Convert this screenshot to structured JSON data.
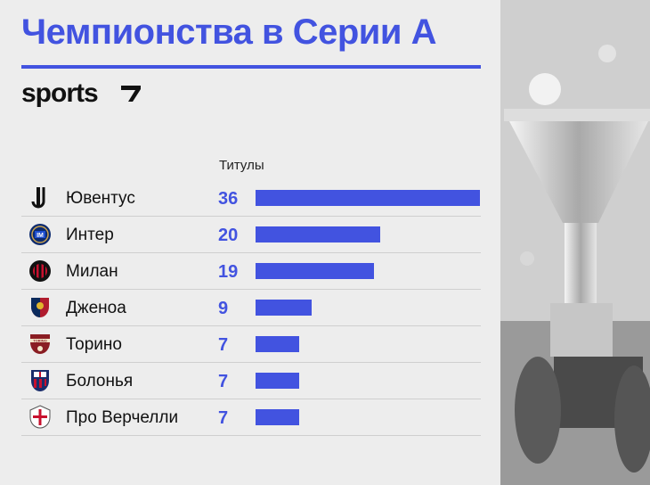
{
  "title": "Чемпионства в Серии А",
  "brand": "sports",
  "column_header": "Титулы",
  "colors": {
    "accent": "#4253e0",
    "text": "#111111",
    "divider": "#cfcfcf"
  },
  "chart_data": {
    "type": "bar",
    "orientation": "horizontal",
    "categories": [
      "Ювентус",
      "Интер",
      "Милан",
      "Дженоа",
      "Торино",
      "Болонья",
      "Про Верчелли"
    ],
    "values": [
      36,
      20,
      19,
      9,
      7,
      7,
      7
    ],
    "value_labels": [
      "36",
      "20",
      "19",
      "9",
      "7",
      "7",
      "7"
    ],
    "logo_icons": [
      "juventus-logo-icon",
      "inter-logo-icon",
      "milan-logo-icon",
      "genoa-logo-icon",
      "torino-logo-icon",
      "bologna-logo-icon",
      "pro-vercelli-logo-icon"
    ],
    "grid": false,
    "legend": "none"
  },
  "photo": {
    "icon": "serie-a-trophy-photo"
  }
}
